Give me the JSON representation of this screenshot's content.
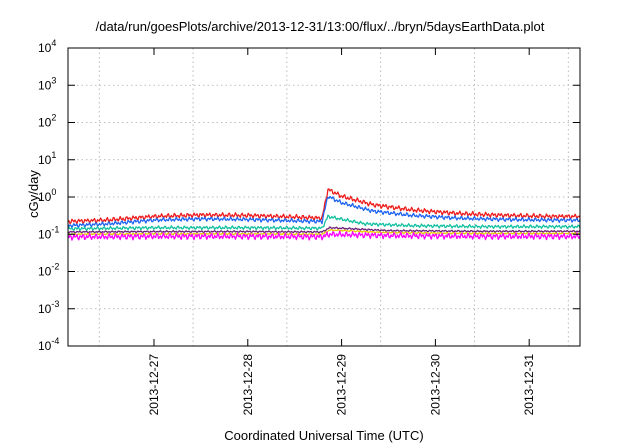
{
  "chart_data": {
    "type": "line",
    "title": "/data/run/goesPlots/archive/2013-12-31/13:00/flux/../bryn/5daysEarthData.plot",
    "xlabel": "Coordinated Universal Time (UTC)",
    "ylabel": "cGy/day",
    "y_scale": "log",
    "ylim": [
      0.0001,
      10000
    ],
    "y_ticks": [
      {
        "value": 0.0001,
        "base": "10",
        "exp": "-4"
      },
      {
        "value": 0.001,
        "base": "10",
        "exp": "-3"
      },
      {
        "value": 0.01,
        "base": "10",
        "exp": "-2"
      },
      {
        "value": 0.1,
        "base": "10",
        "exp": "-1"
      },
      {
        "value": 1,
        "base": "10",
        "exp": "0"
      },
      {
        "value": 10,
        "base": "10",
        "exp": "1"
      },
      {
        "value": 100,
        "base": "10",
        "exp": "2"
      },
      {
        "value": 1000,
        "base": "10",
        "exp": "3"
      },
      {
        "value": 10000,
        "base": "10",
        "exp": "4"
      }
    ],
    "xlim": [
      "2013-12-26T02:00",
      "2013-12-31T13:00"
    ],
    "x_ticks": [
      "2013-12-27",
      "2013-12-28",
      "2013-12-29",
      "2013-12-30",
      "2013-12-31"
    ],
    "grid": true,
    "x_grid_days": [
      "2013-12-26T10:00",
      "2013-12-27T10:00",
      "2013-12-28T10:00",
      "2013-12-29T10:00",
      "2013-12-30T10:00",
      "2013-12-31T10:00"
    ],
    "series": [
      {
        "color": "#ee1c1c",
        "x": [
          "2013-12-26T02:00",
          "2013-12-26T12:00",
          "2013-12-27T00:00",
          "2013-12-27T12:00",
          "2013-12-28T00:00",
          "2013-12-28T12:00",
          "2013-12-28T19:00",
          "2013-12-28T20:30",
          "2013-12-29T00:00",
          "2013-12-29T08:00",
          "2013-12-29T18:00",
          "2013-12-30T06:00",
          "2013-12-30T18:00",
          "2013-12-31T06:00",
          "2013-12-31T13:00"
        ],
        "values": [
          0.22,
          0.24,
          0.3,
          0.33,
          0.32,
          0.29,
          0.27,
          1.6,
          1.05,
          0.62,
          0.45,
          0.36,
          0.32,
          0.3,
          0.3
        ]
      },
      {
        "color": "#1e64f0",
        "x": [
          "2013-12-26T02:00",
          "2013-12-26T12:00",
          "2013-12-27T00:00",
          "2013-12-27T12:00",
          "2013-12-28T00:00",
          "2013-12-28T12:00",
          "2013-12-28T19:00",
          "2013-12-28T20:30",
          "2013-12-29T00:00",
          "2013-12-29T08:00",
          "2013-12-29T18:00",
          "2013-12-30T06:00",
          "2013-12-30T18:00",
          "2013-12-31T06:00",
          "2013-12-31T13:00"
        ],
        "values": [
          0.17,
          0.19,
          0.24,
          0.26,
          0.25,
          0.23,
          0.22,
          1.05,
          0.7,
          0.42,
          0.32,
          0.27,
          0.25,
          0.24,
          0.24
        ]
      },
      {
        "color": "#13c0a0",
        "x": [
          "2013-12-26T02:00",
          "2013-12-27T00:00",
          "2013-12-28T00:00",
          "2013-12-28T19:00",
          "2013-12-28T20:30",
          "2013-12-29T06:00",
          "2013-12-29T18:00",
          "2013-12-30T12:00",
          "2013-12-31T13:00"
        ],
        "values": [
          0.14,
          0.15,
          0.15,
          0.145,
          0.3,
          0.19,
          0.17,
          0.16,
          0.16
        ]
      },
      {
        "color": "#6b1f7a",
        "x": [
          "2013-12-26T02:00",
          "2013-12-27T00:00",
          "2013-12-28T00:00",
          "2013-12-28T19:00",
          "2013-12-28T21:00",
          "2013-12-29T12:00",
          "2013-12-30T12:00",
          "2013-12-31T13:00"
        ],
        "values": [
          0.115,
          0.118,
          0.118,
          0.115,
          0.15,
          0.125,
          0.12,
          0.12
        ]
      },
      {
        "color": "#e8c800",
        "x": [
          "2013-12-26T02:00",
          "2013-12-27T00:00",
          "2013-12-28T00:00",
          "2013-12-28T19:00",
          "2013-12-28T21:00",
          "2013-12-29T12:00",
          "2013-12-30T12:00",
          "2013-12-31T13:00"
        ],
        "values": [
          0.1,
          0.102,
          0.102,
          0.1,
          0.13,
          0.11,
          0.105,
          0.105
        ]
      },
      {
        "color": "#ff00ff",
        "x": [
          "2013-12-26T02:00",
          "2013-12-27T00:00",
          "2013-12-28T00:00",
          "2013-12-28T19:00",
          "2013-12-28T21:00",
          "2013-12-29T12:00",
          "2013-12-30T12:00",
          "2013-12-31T13:00"
        ],
        "values": [
          0.085,
          0.088,
          0.088,
          0.086,
          0.1,
          0.092,
          0.088,
          0.088
        ]
      }
    ]
  }
}
